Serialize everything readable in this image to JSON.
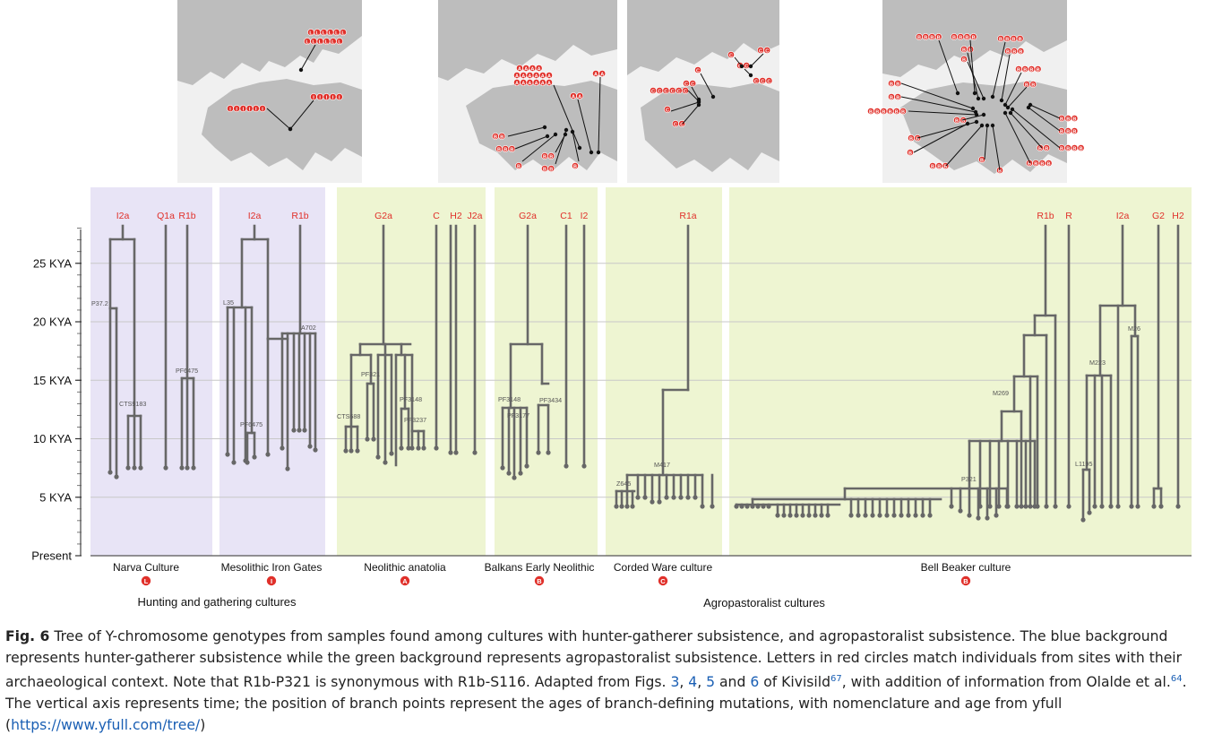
{
  "figure": {
    "y_axis": {
      "labels": [
        "25 KYA",
        "20 KYA",
        "15 KYA",
        "10 KYA",
        "5 KYA",
        "Present"
      ],
      "values": [
        25,
        20,
        15,
        10,
        5,
        0
      ]
    },
    "panels": [
      {
        "id": "narva",
        "culture": "Narva Culture",
        "badge": "L",
        "bg": "#e8e4f6",
        "haplogroups": [
          "I2a",
          "Q1a",
          "R1b"
        ]
      },
      {
        "id": "iron-gates",
        "culture": "Mesolithic Iron Gates",
        "badge": "I",
        "bg": "#e8e4f6",
        "haplogroups": [
          "I2a",
          "R1b"
        ]
      },
      {
        "id": "anatolia",
        "culture": "Neolithic anatolia",
        "badge": "A",
        "bg": "#eef5d2",
        "haplogroups": [
          "G2a",
          "C",
          "H2",
          "J2a"
        ]
      },
      {
        "id": "balkans",
        "culture": "Balkans Early Neolithic",
        "badge": "B",
        "bg": "#eef5d2",
        "haplogroups": [
          "G2a",
          "C1",
          "I2"
        ]
      },
      {
        "id": "corded",
        "culture": "Corded Ware culture",
        "badge": "C",
        "bg": "#eef5d2",
        "haplogroups": [
          "R1a"
        ]
      },
      {
        "id": "beaker",
        "culture": "Bell Beaker culture",
        "badge": "B",
        "bg": "#eef5d2",
        "haplogroups": [
          "R1b",
          "R",
          "I2a",
          "G2",
          "H2"
        ]
      }
    ],
    "mutation_labels": {
      "p37_2": "P37.2",
      "cts9183": "CTS9183",
      "pf6475_a": "PF6475",
      "l35": "L35",
      "pf6475_b": "PF6475",
      "a702": "A702",
      "cts688": "CTS688",
      "pf321": "PF321",
      "pf3148_a": "PF3148",
      "pf3237": "PF3237",
      "pf3148_b": "PF3148",
      "pf3177": "PF3177",
      "pf3434": "PF3434",
      "z645": "Z645",
      "m417": "M417",
      "m269": "M269",
      "p321": "P321",
      "m223": "M223",
      "m26": "M26",
      "l1195": "L1195"
    },
    "groups": {
      "hunting": "Hunting and gathering cultures",
      "agro": "Agropastoralist cultures"
    },
    "colors": {
      "label_red": "#e0302a",
      "tree": "#676767",
      "grid": "#c8c8c8",
      "map_land": "#bcbcbc",
      "map_sea": "#ffffff"
    }
  },
  "caption": {
    "fig_label": "Fig. 6",
    "text_1": " Tree of Y-chromosome genotypes from samples found among cultures with hunter-gatherer subsistence, and agropastoralist subsistence. The blue background represents hunter-gatherer subsistence while the green background represents agropastoralist subsistence. Letters in red circles match individuals from sites with their archaeological context. Note that R1b-P321 is synonymous with R1b-S116.  Adapted from Figs. ",
    "ref_3": "3",
    "sep_1": ", ",
    "ref_4": "4",
    "sep_2": ", ",
    "ref_5": "5",
    "sep_3": " and ",
    "ref_6": "6",
    "text_2": " of Kivisild",
    "sup_67": "67",
    "text_3": ", with addition of information from Olalde et al.",
    "sup_64": "64",
    "text_4": ". The vertical axis represents time; the position of branch points represent the ages of branch-defining mutations, with nomenclature and age from yfull (",
    "url": "https://www.yfull.com/tree/",
    "text_5": ")"
  }
}
